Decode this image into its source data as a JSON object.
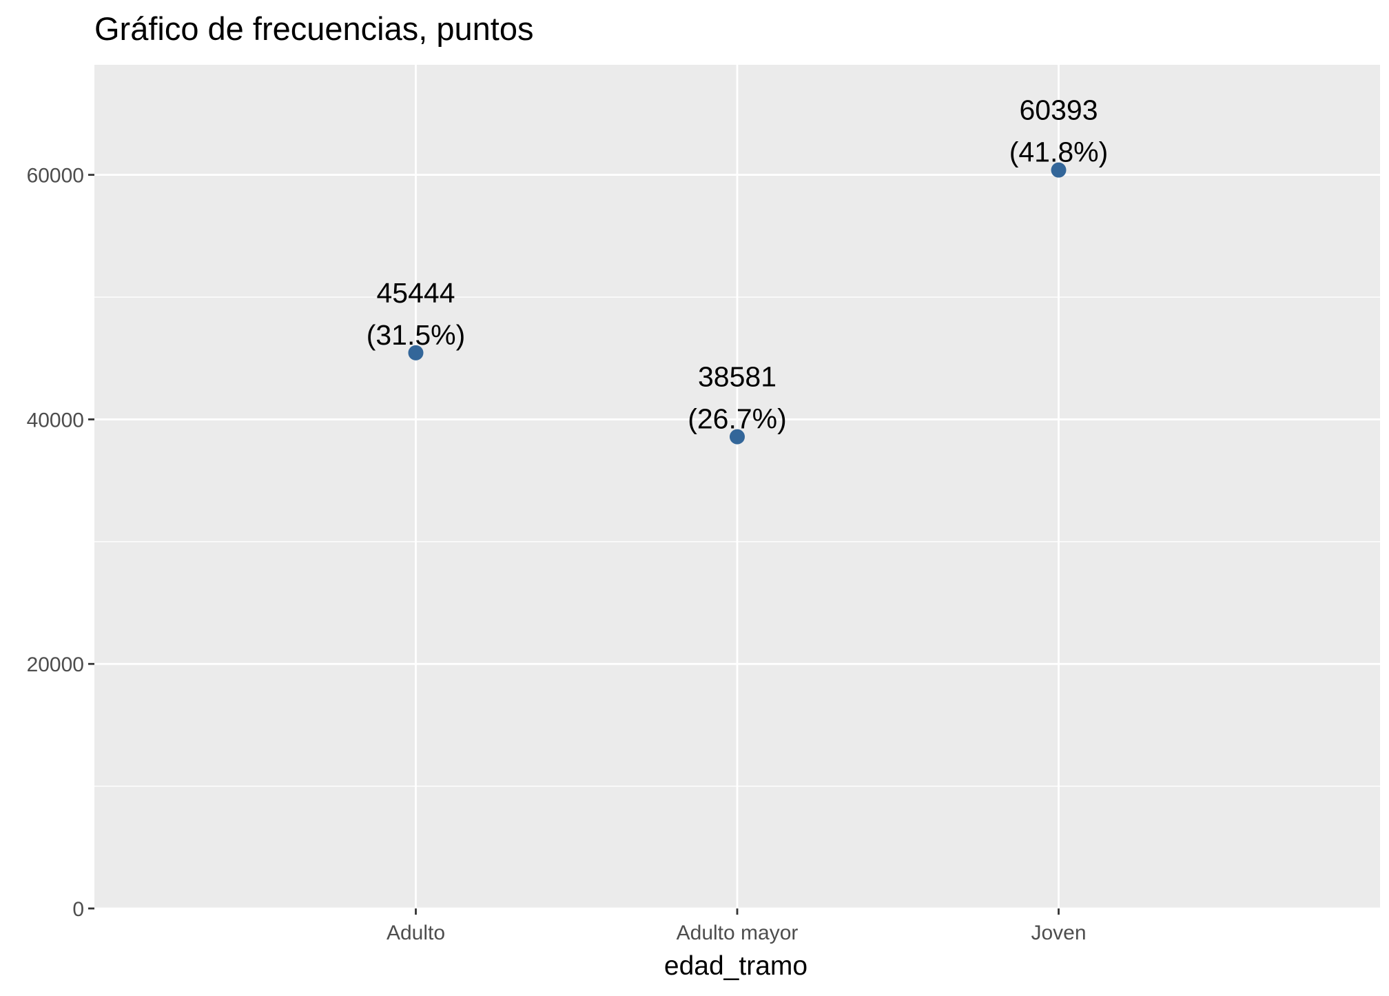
{
  "chart_data": {
    "type": "scatter",
    "title": "Gráfico de frecuencias, puntos",
    "xlabel": "edad_tramo",
    "ylabel": "",
    "categories": [
      "Adulto",
      "Adulto mayor",
      "Joven"
    ],
    "values": [
      45444,
      38581,
      60393
    ],
    "data_labels": [
      {
        "count": "45444",
        "percent": "(31.5%)"
      },
      {
        "count": "38581",
        "percent": "(26.7%)"
      },
      {
        "count": "60393",
        "percent": "(41.8%)"
      }
    ],
    "yticks": [
      0,
      20000,
      40000,
      60000
    ],
    "ytick_labels": [
      "0",
      "20000",
      "40000",
      "60000"
    ],
    "ylim": [
      0,
      69000
    ],
    "grid": true,
    "legend": "none",
    "colors": {
      "point": "#336699",
      "panel": "#ebebeb",
      "grid": "#ffffff",
      "tick": "#333333"
    }
  }
}
